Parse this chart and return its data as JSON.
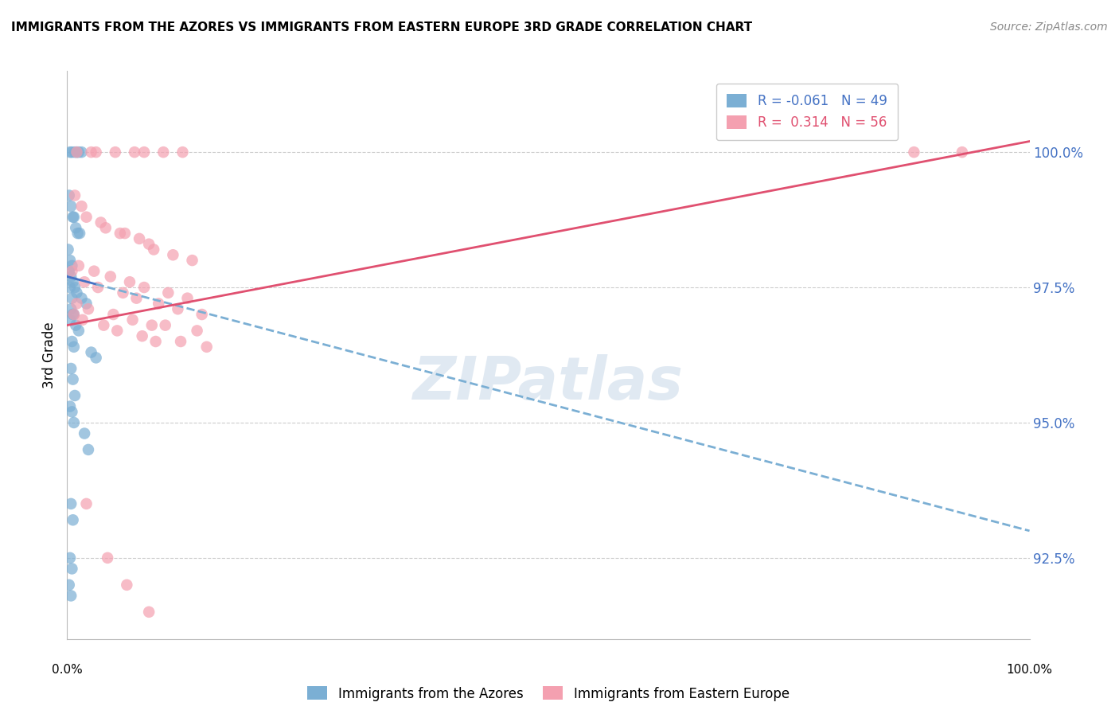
{
  "title": "IMMIGRANTS FROM THE AZORES VS IMMIGRANTS FROM EASTERN EUROPE 3RD GRADE CORRELATION CHART",
  "source": "Source: ZipAtlas.com",
  "ylabel": "3rd Grade",
  "y_tick_values": [
    92.5,
    95.0,
    97.5,
    100.0
  ],
  "xlim": [
    0.0,
    100.0
  ],
  "ylim": [
    91.0,
    101.5
  ],
  "legend_blue_r": "-0.061",
  "legend_blue_n": "49",
  "legend_pink_r": "0.314",
  "legend_pink_n": "56",
  "blue_color": "#7bafd4",
  "pink_color": "#f4a0b0",
  "blue_line_color": "#4472c4",
  "pink_line_color": "#e05070",
  "blue_scatter_x": [
    0.3,
    0.5,
    0.8,
    1.0,
    1.2,
    1.5,
    0.2,
    0.4,
    0.6,
    0.7,
    0.9,
    1.1,
    1.3,
    0.1,
    0.3,
    0.5,
    0.2,
    0.4,
    0.6,
    0.3,
    0.8,
    1.0,
    0.5,
    1.5,
    2.0,
    0.4,
    0.6,
    0.7,
    0.3,
    0.9,
    1.2,
    0.5,
    0.7,
    2.5,
    3.0,
    0.4,
    0.6,
    0.8,
    0.3,
    0.5,
    0.7,
    1.8,
    2.2,
    0.4,
    0.6,
    0.3,
    0.5,
    0.2,
    0.4
  ],
  "blue_scatter_y": [
    100.0,
    100.0,
    100.0,
    100.0,
    100.0,
    100.0,
    99.2,
    99.0,
    98.8,
    98.8,
    98.6,
    98.5,
    98.5,
    98.2,
    98.0,
    97.9,
    97.8,
    97.7,
    97.6,
    97.5,
    97.5,
    97.4,
    97.3,
    97.3,
    97.2,
    97.1,
    97.0,
    97.0,
    96.9,
    96.8,
    96.7,
    96.5,
    96.4,
    96.3,
    96.2,
    96.0,
    95.8,
    95.5,
    95.3,
    95.2,
    95.0,
    94.8,
    94.5,
    93.5,
    93.2,
    92.5,
    92.3,
    92.0,
    91.8
  ],
  "pink_scatter_x": [
    1.0,
    2.5,
    3.0,
    5.0,
    7.0,
    8.0,
    10.0,
    12.0,
    0.8,
    1.5,
    2.0,
    3.5,
    4.0,
    5.5,
    6.0,
    7.5,
    8.5,
    9.0,
    11.0,
    13.0,
    1.2,
    2.8,
    4.5,
    6.5,
    8.0,
    10.5,
    12.5,
    0.5,
    1.8,
    3.2,
    5.8,
    7.2,
    9.5,
    11.5,
    14.0,
    1.0,
    2.2,
    4.8,
    6.8,
    8.8,
    10.2,
    13.5,
    0.7,
    1.6,
    3.8,
    5.2,
    7.8,
    9.2,
    11.8,
    14.5,
    2.0,
    4.2,
    6.2,
    8.5,
    88.0,
    93.0
  ],
  "pink_scatter_y": [
    100.0,
    100.0,
    100.0,
    100.0,
    100.0,
    100.0,
    100.0,
    100.0,
    99.2,
    99.0,
    98.8,
    98.7,
    98.6,
    98.5,
    98.5,
    98.4,
    98.3,
    98.2,
    98.1,
    98.0,
    97.9,
    97.8,
    97.7,
    97.6,
    97.5,
    97.4,
    97.3,
    97.8,
    97.6,
    97.5,
    97.4,
    97.3,
    97.2,
    97.1,
    97.0,
    97.2,
    97.1,
    97.0,
    96.9,
    96.8,
    96.8,
    96.7,
    97.0,
    96.9,
    96.8,
    96.7,
    96.6,
    96.5,
    96.5,
    96.4,
    93.5,
    92.5,
    92.0,
    91.5,
    100.0,
    100.0
  ],
  "blue_line_x_start": 0.0,
  "blue_line_x_end": 100.0,
  "blue_line_y_start": 97.7,
  "blue_line_y_end": 93.0,
  "pink_line_x_start": 0.0,
  "pink_line_x_end": 100.0,
  "pink_line_y_start": 96.8,
  "pink_line_y_end": 100.2
}
